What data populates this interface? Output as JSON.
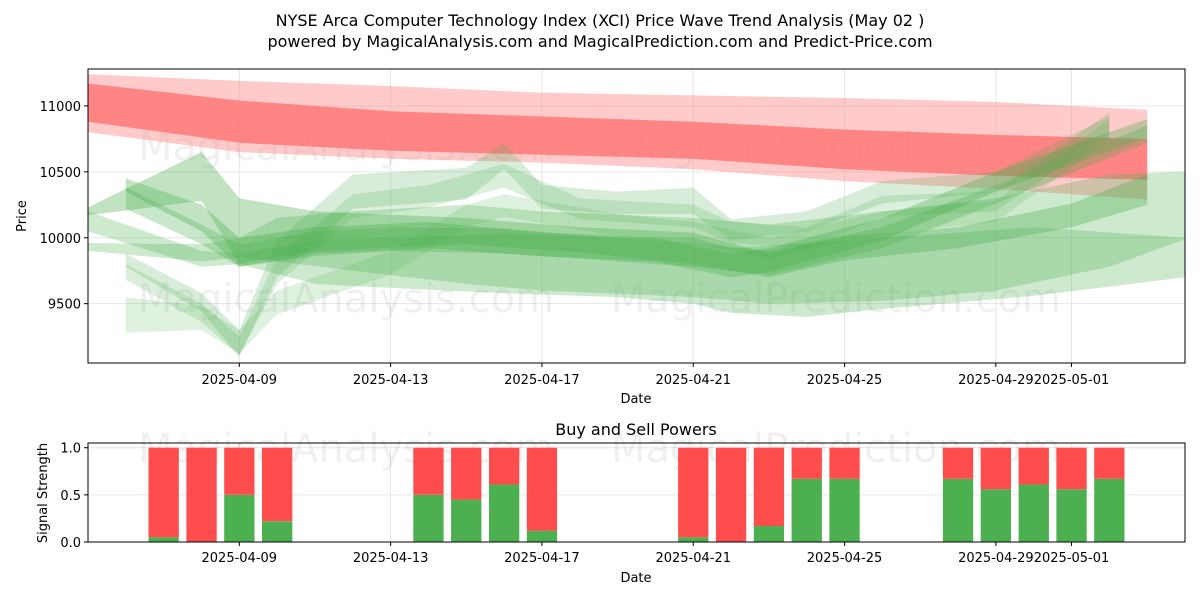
{
  "chart_data": [
    {
      "type": "area",
      "title": "NYSE Arca Computer Technology Index (XCI) Price Wave Trend Analysis (May 02 )",
      "subtitle": "powered by MagicalAnalysis.com and MagicalPrediction.com and Predict-Price.com",
      "xlabel": "Date",
      "ylabel": "Price",
      "x_range": [
        "2025-04-05",
        "2025-05-04"
      ],
      "ylim": [
        9050,
        11280
      ],
      "x_ticks": [
        "2025-04-09",
        "2025-04-13",
        "2025-04-17",
        "2025-04-21",
        "2025-04-25",
        "2025-04-29",
        "2025-05-01"
      ],
      "y_ticks": [
        9500,
        10000,
        10500,
        11000
      ],
      "grid": true,
      "series": [
        {
          "color": "#ff6b6b",
          "opacity": 0.85,
          "x": [
            "2025-04-05",
            "2025-04-09",
            "2025-04-13",
            "2025-04-17",
            "2025-04-21",
            "2025-04-25",
            "2025-04-29",
            "2025-05-03"
          ],
          "upper": [
            11170,
            11040,
            10960,
            10920,
            10880,
            10820,
            10780,
            10750
          ],
          "lower": [
            10880,
            10720,
            10660,
            10630,
            10600,
            10520,
            10470,
            10440
          ]
        },
        {
          "color": "#ff8a8a",
          "opacity": 0.45,
          "x": [
            "2025-04-05",
            "2025-04-09",
            "2025-04-13",
            "2025-04-17",
            "2025-04-21",
            "2025-04-25",
            "2025-04-29",
            "2025-05-03"
          ],
          "upper": [
            11240,
            11190,
            11150,
            11100,
            11080,
            11060,
            11030,
            10970
          ],
          "lower": [
            10800,
            10650,
            10600,
            10570,
            10520,
            10430,
            10370,
            10290
          ]
        },
        {
          "color": "#4caf50",
          "opacity": 0.35,
          "x": [
            "2025-04-05",
            "2025-04-08",
            "2025-04-09",
            "2025-04-11",
            "2025-04-15",
            "2025-04-18",
            "2025-04-21",
            "2025-04-23",
            "2025-04-25",
            "2025-04-28",
            "2025-05-01",
            "2025-05-03"
          ],
          "upper": [
            10230,
            10650,
            10300,
            10200,
            10150,
            10080,
            10040,
            9880,
            10010,
            10080,
            10260,
            10480
          ],
          "lower": [
            10170,
            10280,
            9800,
            9900,
            9950,
            9890,
            9800,
            9700,
            9830,
            9920,
            10080,
            10250
          ]
        },
        {
          "color": "#4caf50",
          "opacity": 0.35,
          "x": [
            "2025-04-06",
            "2025-04-08",
            "2025-04-09",
            "2025-04-11",
            "2025-04-14",
            "2025-04-17",
            "2025-04-20",
            "2025-04-22",
            "2025-04-23",
            "2025-04-26",
            "2025-04-29",
            "2025-05-03"
          ],
          "upper": [
            10450,
            10250,
            10000,
            10080,
            10120,
            10040,
            10000,
            9880,
            9920,
            10150,
            10500,
            10900
          ],
          "lower": [
            10350,
            10050,
            9780,
            9880,
            9920,
            9860,
            9820,
            9700,
            9740,
            9980,
            10350,
            10760
          ]
        },
        {
          "color": "#4caf50",
          "opacity": 0.3,
          "x": [
            "2025-04-06",
            "2025-04-08",
            "2025-04-09",
            "2025-04-11",
            "2025-04-13",
            "2025-04-16",
            "2025-04-18",
            "2025-04-21",
            "2025-04-23",
            "2025-04-26",
            "2025-04-29",
            "2025-05-03"
          ],
          "upper": [
            10380,
            10100,
            9950,
            10050,
            10080,
            10070,
            10020,
            9960,
            9900,
            10080,
            10400,
            10850
          ],
          "lower": [
            10220,
            9950,
            9780,
            9860,
            9900,
            9880,
            9840,
            9780,
            9720,
            9920,
            10260,
            10720
          ]
        },
        {
          "color": "#4caf50",
          "opacity": 0.28,
          "x": [
            "2025-04-05",
            "2025-04-08",
            "2025-04-09",
            "2025-04-11",
            "2025-04-13",
            "2025-04-16",
            "2025-04-19",
            "2025-04-21",
            "2025-04-22",
            "2025-04-24",
            "2025-04-26",
            "2025-04-30",
            "2025-05-04"
          ],
          "upper": [
            10200,
            9900,
            9880,
            9980,
            10000,
            10030,
            10000,
            10000,
            9920,
            9960,
            10000,
            10080,
            10000
          ],
          "lower": [
            10050,
            9780,
            9800,
            9650,
            9620,
            9580,
            9550,
            9500,
            9430,
            9400,
            9460,
            9560,
            9700
          ]
        },
        {
          "color": "#4caf50",
          "opacity": 0.28,
          "x": [
            "2025-04-05",
            "2025-04-08",
            "2025-04-09",
            "2025-04-10",
            "2025-04-12",
            "2025-04-15",
            "2025-04-17",
            "2025-04-21",
            "2025-04-23",
            "2025-04-26",
            "2025-04-29",
            "2025-05-02",
            "2025-05-04"
          ],
          "upper": [
            9960,
            9950,
            10000,
            10150,
            10200,
            10250,
            10200,
            10150,
            10100,
            10200,
            10300,
            10480,
            10500
          ],
          "lower": [
            9900,
            9820,
            9850,
            9820,
            9750,
            9650,
            9600,
            9550,
            9500,
            9520,
            9600,
            9780,
            9990
          ]
        },
        {
          "color": "#4caf50",
          "opacity": 0.22,
          "x": [
            "2025-04-06",
            "2025-04-08",
            "2025-04-09",
            "2025-04-10",
            "2025-04-12",
            "2025-04-15",
            "2025-04-16",
            "2025-04-17",
            "2025-04-19",
            "2025-04-21",
            "2025-04-22",
            "2025-04-24",
            "2025-04-26",
            "2025-04-29",
            "2025-05-02"
          ],
          "upper": [
            9880,
            9580,
            9300,
            9980,
            10480,
            10530,
            10720,
            10400,
            10350,
            10380,
            10140,
            10200,
            10430,
            10500,
            10920
          ],
          "lower": [
            9780,
            9440,
            9100,
            9700,
            10220,
            10290,
            10520,
            10220,
            10180,
            10180,
            9980,
            10050,
            10260,
            10350,
            10750
          ]
        },
        {
          "color": "#4caf50",
          "opacity": 0.2,
          "x": [
            "2025-04-06",
            "2025-04-08",
            "2025-04-09",
            "2025-04-10",
            "2025-04-12",
            "2025-04-14",
            "2025-04-16",
            "2025-04-18",
            "2025-04-21",
            "2025-04-22",
            "2025-04-24",
            "2025-04-26",
            "2025-04-29",
            "2025-05-02"
          ],
          "upper": [
            9800,
            9500,
            9250,
            9850,
            10330,
            10400,
            10560,
            10300,
            10250,
            10120,
            10080,
            10320,
            10350,
            10950
          ],
          "lower": [
            9680,
            9360,
            9110,
            9650,
            10150,
            10230,
            10380,
            10140,
            10080,
            9960,
            9920,
            10160,
            10200,
            10790
          ]
        },
        {
          "color": "#4caf50",
          "opacity": 0.18,
          "x": [
            "2025-04-06",
            "2025-04-08",
            "2025-04-09",
            "2025-04-10",
            "2025-04-13",
            "2025-04-15",
            "2025-04-16",
            "2025-04-19",
            "2025-04-21",
            "2025-04-23",
            "2025-04-26",
            "2025-04-29",
            "2025-05-02"
          ],
          "upper": [
            9550,
            9480,
            9300,
            9600,
            9900,
            10250,
            10330,
            10180,
            10120,
            10000,
            10200,
            10280,
            10900
          ],
          "lower": [
            9280,
            9300,
            9120,
            9420,
            9720,
            10080,
            10160,
            10010,
            9960,
            9840,
            10030,
            10120,
            10740
          ]
        }
      ]
    },
    {
      "type": "bar",
      "title": "Buy and Sell Powers",
      "xlabel": "Date",
      "ylabel": "Signal Strength",
      "ylim": [
        0,
        1.05
      ],
      "y_ticks": [
        "0.0",
        "0.5",
        "1.0"
      ],
      "x_ticks": [
        "2025-04-09",
        "2025-04-13",
        "2025-04-17",
        "2025-04-21",
        "2025-04-25",
        "2025-04-29",
        "2025-05-01"
      ],
      "x_range": [
        "2025-04-05",
        "2025-05-04"
      ],
      "grid": true,
      "buy_color": "#4caf50",
      "sell_color": "#ff4d4d",
      "categories": [
        "2025-04-07",
        "2025-04-08",
        "2025-04-09",
        "2025-04-10",
        "2025-04-14",
        "2025-04-15",
        "2025-04-16",
        "2025-04-17",
        "2025-04-21",
        "2025-04-22",
        "2025-04-23",
        "2025-04-24",
        "2025-04-25",
        "2025-04-28",
        "2025-04-29",
        "2025-04-30",
        "2025-05-01",
        "2025-05-02"
      ],
      "series": [
        {
          "name": "buy",
          "values": [
            0.05,
            0.0,
            0.5,
            0.22,
            0.5,
            0.45,
            0.61,
            0.12,
            0.05,
            0.0,
            0.17,
            0.67,
            0.67,
            0.67,
            0.56,
            0.61,
            0.56,
            0.67
          ]
        },
        {
          "name": "sell",
          "values": [
            0.95,
            1.0,
            0.5,
            0.78,
            0.5,
            0.55,
            0.39,
            0.88,
            0.95,
            1.0,
            0.83,
            0.33,
            0.33,
            0.33,
            0.44,
            0.39,
            0.44,
            0.33
          ]
        }
      ]
    }
  ],
  "watermarks": [
    "MagicalAnalysis.com",
    "MagicalPrediction.com"
  ]
}
